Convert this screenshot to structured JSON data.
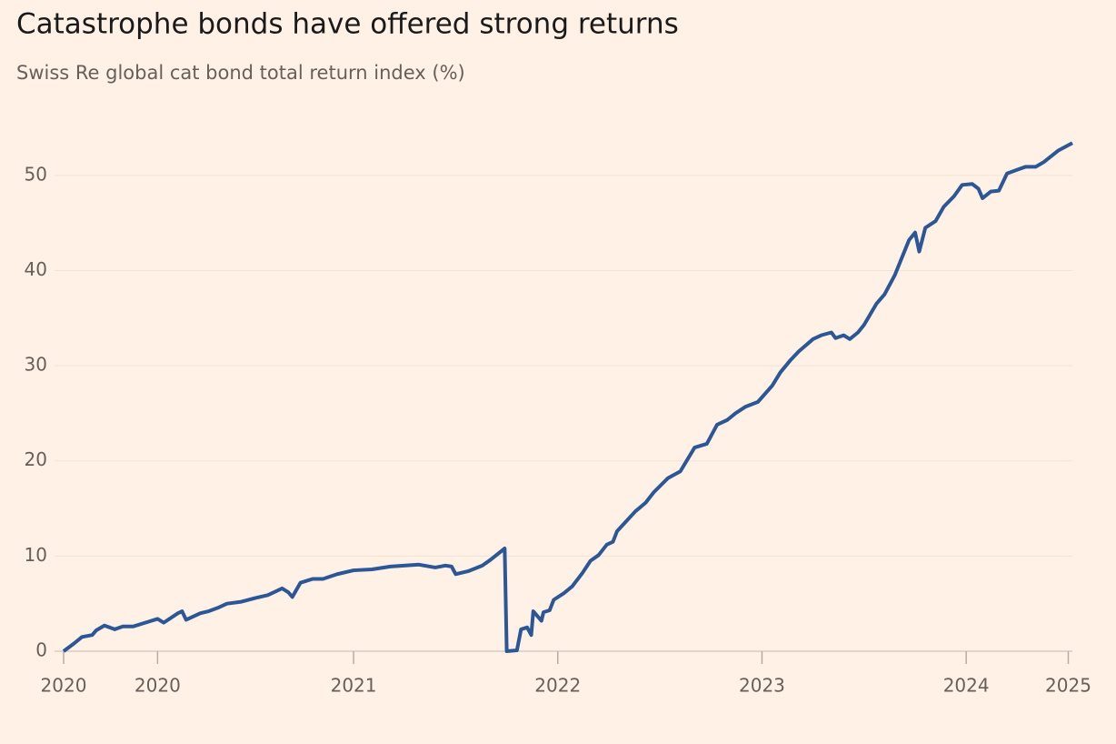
{
  "chart_data": {
    "type": "line",
    "title": "Catastrophe bonds have offered strong returns",
    "subtitle": "Swiss Re global cat bond total return index (%)",
    "x": [
      2019.58,
      2019.63,
      2019.67,
      2019.72,
      2019.74,
      2019.78,
      2019.83,
      2019.87,
      2019.92,
      2019.98,
      2020.04,
      2020.07,
      2020.14,
      2020.16,
      2020.18,
      2020.25,
      2020.29,
      2020.34,
      2020.38,
      2020.45,
      2020.52,
      2020.58,
      2020.65,
      2020.68,
      2020.7,
      2020.74,
      2020.8,
      2020.85,
      2020.92,
      2021.0,
      2021.09,
      2021.18,
      2021.32,
      2021.4,
      2021.45,
      2021.48,
      2021.5,
      2021.56,
      2021.63,
      2021.67,
      2021.74,
      2021.75,
      2021.8,
      2021.82,
      2021.85,
      2021.87,
      2021.88,
      2021.92,
      2021.93,
      2021.96,
      2021.98,
      2022.03,
      2022.07,
      2022.12,
      2022.16,
      2022.2,
      2022.24,
      2022.27,
      2022.29,
      2022.38,
      2022.43,
      2022.47,
      2022.54,
      2022.6,
      2022.67,
      2022.73,
      2022.78,
      2022.83,
      2022.87,
      2022.92,
      2022.98,
      2023.05,
      2023.09,
      2023.14,
      2023.18,
      2023.25,
      2023.29,
      2023.34,
      2023.36,
      2023.4,
      2023.43,
      2023.47,
      2023.5,
      2023.56,
      2023.6,
      2023.65,
      2023.72,
      2023.75,
      2023.77,
      2023.8,
      2023.85,
      2023.89,
      2023.94,
      2023.98,
      2024.03,
      2024.06,
      2024.08,
      2024.12,
      2024.16,
      2024.2,
      2024.25,
      2024.29,
      2024.34,
      2024.38,
      2024.45,
      2024.52
    ],
    "series": [
      {
        "name": "Swiss Re global cat bond total return index",
        "color": "#2b5797",
        "values": [
          0,
          0.8,
          1.5,
          1.7,
          2.2,
          2.7,
          2.3,
          2.6,
          2.6,
          3.0,
          3.4,
          3.0,
          4.0,
          4.2,
          3.3,
          4.0,
          4.2,
          4.6,
          5.0,
          5.2,
          5.6,
          5.9,
          6.6,
          6.2,
          5.7,
          7.2,
          7.6,
          7.6,
          8.1,
          8.5,
          8.6,
          8.9,
          9.1,
          8.8,
          9.0,
          8.9,
          8.1,
          8.4,
          9.0,
          9.6,
          10.8,
          0.0,
          0.1,
          2.3,
          2.5,
          1.7,
          4.2,
          3.2,
          4.1,
          4.3,
          5.4,
          6.1,
          6.8,
          8.2,
          9.5,
          10.1,
          11.2,
          11.5,
          12.6,
          14.7,
          15.6,
          16.7,
          18.2,
          18.9,
          21.4,
          21.8,
          23.8,
          24.3,
          25.0,
          25.7,
          26.2,
          27.9,
          29.3,
          30.6,
          31.5,
          32.8,
          33.2,
          33.5,
          32.9,
          33.2,
          32.8,
          33.5,
          34.3,
          36.5,
          37.5,
          39.5,
          43.2,
          44.0,
          42.0,
          44.5,
          45.2,
          46.7,
          47.8,
          49.0,
          49.1,
          48.6,
          47.6,
          48.3,
          48.4,
          50.2,
          50.6,
          50.9,
          50.9,
          51.4,
          52.6,
          53.4
        ]
      }
    ],
    "xlim": [
      2019.58,
      2024.52
    ],
    "xticks": [
      {
        "value": 2019.58,
        "label": "2020"
      },
      {
        "value": 2020.04,
        "label": "2020"
      },
      2021,
      2022,
      2023,
      2024,
      {
        "value": 2024.5,
        "label": "2025"
      }
    ],
    "ylim": [
      0,
      54
    ],
    "yticks": [
      0,
      10,
      20,
      30,
      40,
      50
    ],
    "grid": true
  }
}
